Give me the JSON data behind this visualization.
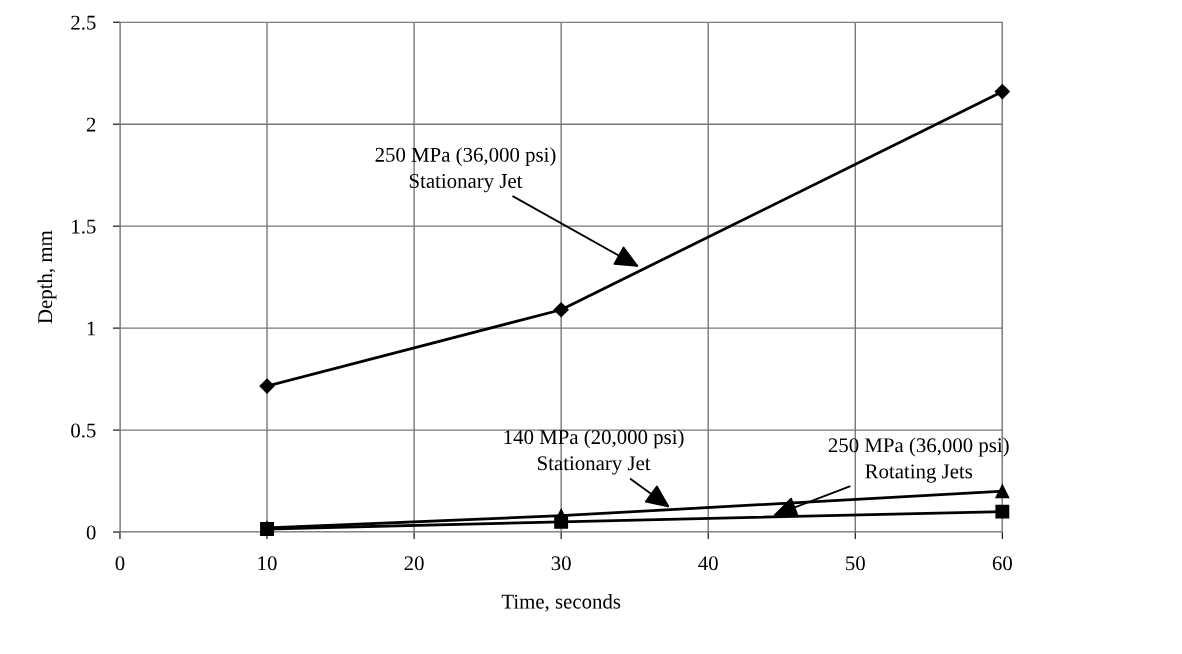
{
  "chart_data": {
    "type": "line",
    "xlabel": "Time, seconds",
    "ylabel": "Depth, mm",
    "x": [
      10,
      30,
      60
    ],
    "series": [
      {
        "color": "#000000",
        "marker": "diamond",
        "values": [
          0.716,
          1.09,
          2.16
        ]
      },
      {
        "color": "#000000",
        "marker": "triangle",
        "values": [
          0.02,
          0.08,
          0.2
        ]
      },
      {
        "color": "#000000",
        "marker": "square",
        "values": [
          0.015,
          0.05,
          0.1
        ]
      }
    ],
    "xlim": [
      0,
      60
    ],
    "xticks": [
      0,
      10,
      20,
      30,
      40,
      50,
      60
    ],
    "ylim": [
      0,
      2.5
    ],
    "yticks": [
      {
        "value": 0,
        "label": "0"
      },
      0.5,
      1,
      1.5,
      2,
      2.5
    ],
    "grid": true,
    "line_style": "solid",
    "annotations": [
      {
        "text": "250 MPa (36,000 psi)\nStationary Jet",
        "x": 35.3,
        "y": 1.3
      },
      {
        "text": "140 MPa (20,000 psi)\nStationary Jet",
        "x": 37.4,
        "y": 0.12
      },
      {
        "text": "250 MPa (36,000 psi)\nRotating Jets",
        "x": 44.4,
        "y": 0.08
      }
    ]
  }
}
